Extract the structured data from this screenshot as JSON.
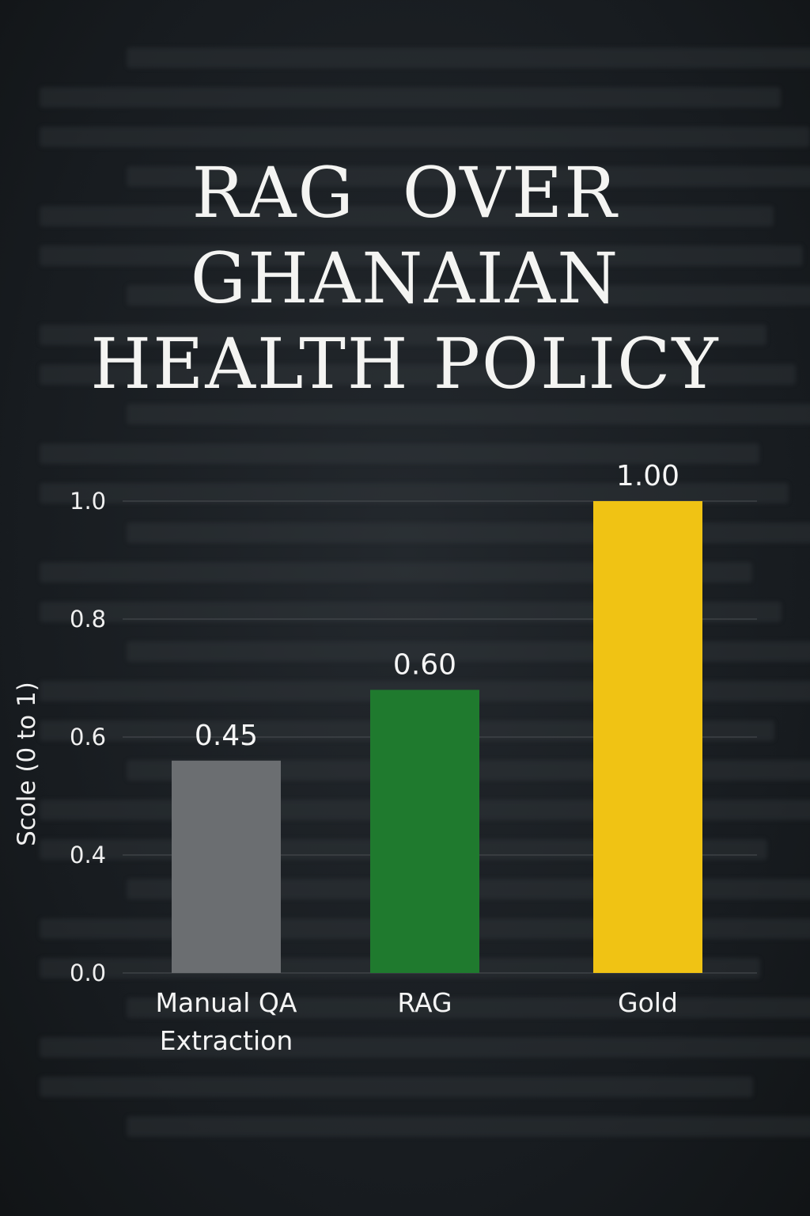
{
  "title_lines": [
    "RAG  OVER",
    "GHANAIAN",
    "HEALTH POLICY"
  ],
  "chart_data": {
    "type": "bar",
    "title": "RAG OVER GHANAIAN HEALTH POLICY",
    "ylabel": "Scole (0 to 1)",
    "xlabel": "",
    "categories": [
      [
        "Manual QA",
        "Extraction"
      ],
      [
        "RAG"
      ],
      [
        "Gold"
      ]
    ],
    "values": [
      0.45,
      0.6,
      1.0
    ],
    "data_labels": [
      "0.45",
      "0.60",
      "1.00"
    ],
    "colors": [
      "#6b6e71",
      "#1f7a2e",
      "#f0c314"
    ],
    "y_ticks": [
      "1.0",
      "0.8",
      "0.6",
      "0.4",
      "0.0"
    ],
    "ylim": [
      0,
      1.0
    ],
    "grid": true,
    "legend": "none"
  },
  "colors": {
    "background": "#1a1e22",
    "text": "#f4f4f2",
    "grid": "#4a4e52"
  }
}
